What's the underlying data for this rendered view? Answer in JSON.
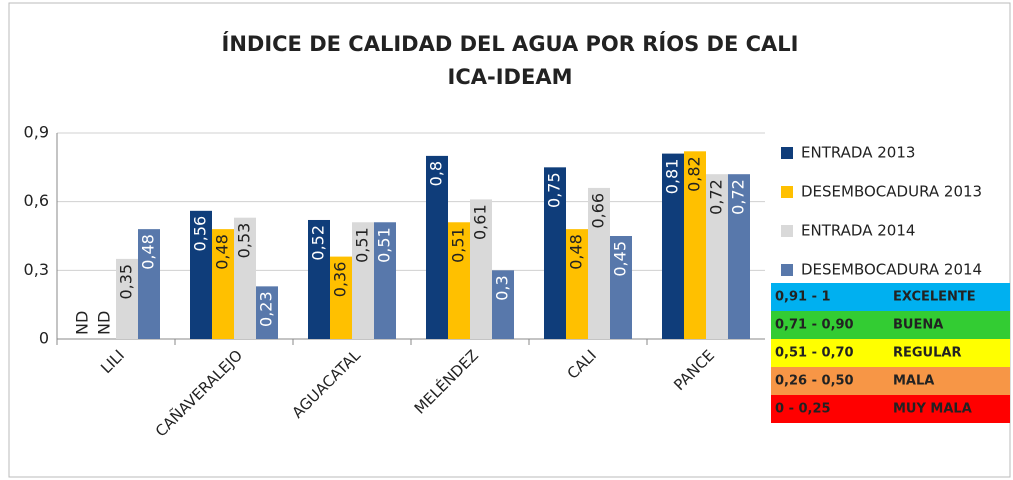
{
  "chart_data": {
    "type": "bar",
    "title": "ÍNDICE DE CALIDAD DEL AGUA POR RÍOS DE CALI",
    "subtitle": "ICA-IDEAM",
    "categories": [
      "LILI",
      "CAÑAVERALEJO",
      "AGUACATAL",
      "MELÉNDEZ",
      "CALI",
      "PANCE"
    ],
    "series": [
      {
        "name": "ENTRADA 2013",
        "color": "#0f3d7a",
        "values": [
          null,
          0.56,
          0.52,
          0.8,
          0.75,
          0.81
        ],
        "value_labels": [
          "ND",
          "0,56",
          "0,52",
          "0,8",
          "0,75",
          "0,81"
        ]
      },
      {
        "name": "DESEMBOCADURA 2013",
        "color": "#ffc000",
        "values": [
          null,
          0.48,
          0.36,
          0.51,
          0.48,
          0.82
        ],
        "value_labels": [
          "ND",
          "0,48",
          "0,36",
          "0,51",
          "0,48",
          "0,82"
        ]
      },
      {
        "name": "ENTRADA 2014",
        "color": "#d9d9d9",
        "values": [
          0.35,
          0.53,
          0.51,
          0.61,
          0.66,
          0.72
        ],
        "value_labels": [
          "0,35",
          "0,53",
          "0,51",
          "0,61",
          "0,66",
          "0,72"
        ]
      },
      {
        "name": "DESEMBOCADURA 2014",
        "color": "#5878ab",
        "values": [
          0.48,
          0.23,
          0.51,
          0.3,
          0.45,
          0.72
        ],
        "value_labels": [
          "0,48",
          "0,23",
          "0,51",
          "0,3",
          "0,45",
          "0,72"
        ]
      }
    ],
    "ylim": [
      0,
      0.9
    ],
    "yticks": [
      0,
      {
        "value": 0.3,
        "label": "0,3"
      },
      {
        "value": 0.6,
        "label": "0,6"
      },
      {
        "value": 0.9,
        "label": "0,9"
      }
    ],
    "grid": true,
    "legend": "right"
  },
  "scale": [
    {
      "range": "0,91 - 1",
      "label": "EXCELENTE",
      "color": "#00b0f0"
    },
    {
      "range": "0,71 - 0,90",
      "label": "BUENA",
      "color": "#33cc33"
    },
    {
      "range": "0,51 - 0,70",
      "label": "REGULAR",
      "color": "#ffff00"
    },
    {
      "range": "0,26 - 0,50",
      "label": "MALA",
      "color": "#f79646"
    },
    {
      "range": "0 - 0,25",
      "label": "MUY MALA",
      "color": "#ff0000"
    }
  ]
}
